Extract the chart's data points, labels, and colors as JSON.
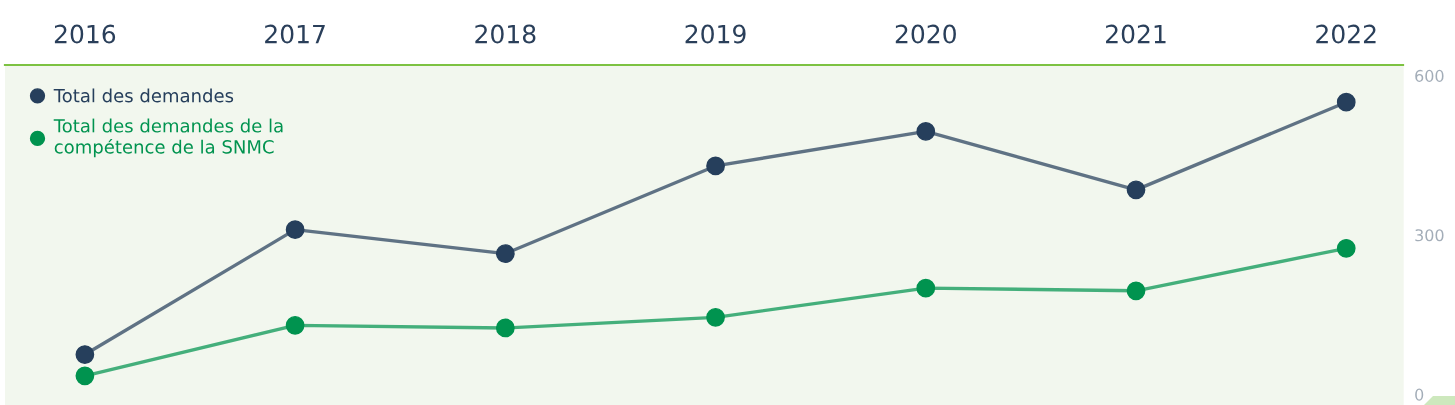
{
  "chart_data": {
    "type": "line",
    "categories": [
      "2016",
      "2017",
      "2018",
      "2019",
      "2020",
      "2021",
      "2022"
    ],
    "series": [
      {
        "name": "Total des demandes",
        "color": "#263f5c",
        "values": [
          75,
          310,
          265,
          430,
          495,
          385,
          550
        ]
      },
      {
        "name": "Total des demandes de la compétence de la SNMC",
        "color": "#00934f",
        "values": [
          35,
          130,
          125,
          145,
          200,
          195,
          275
        ]
      }
    ],
    "ylim": [
      -20,
      620
    ],
    "yticks": [
      0,
      300,
      600
    ],
    "grid": false,
    "legend": "top left",
    "marker": "circle",
    "line_style": "solid"
  }
}
